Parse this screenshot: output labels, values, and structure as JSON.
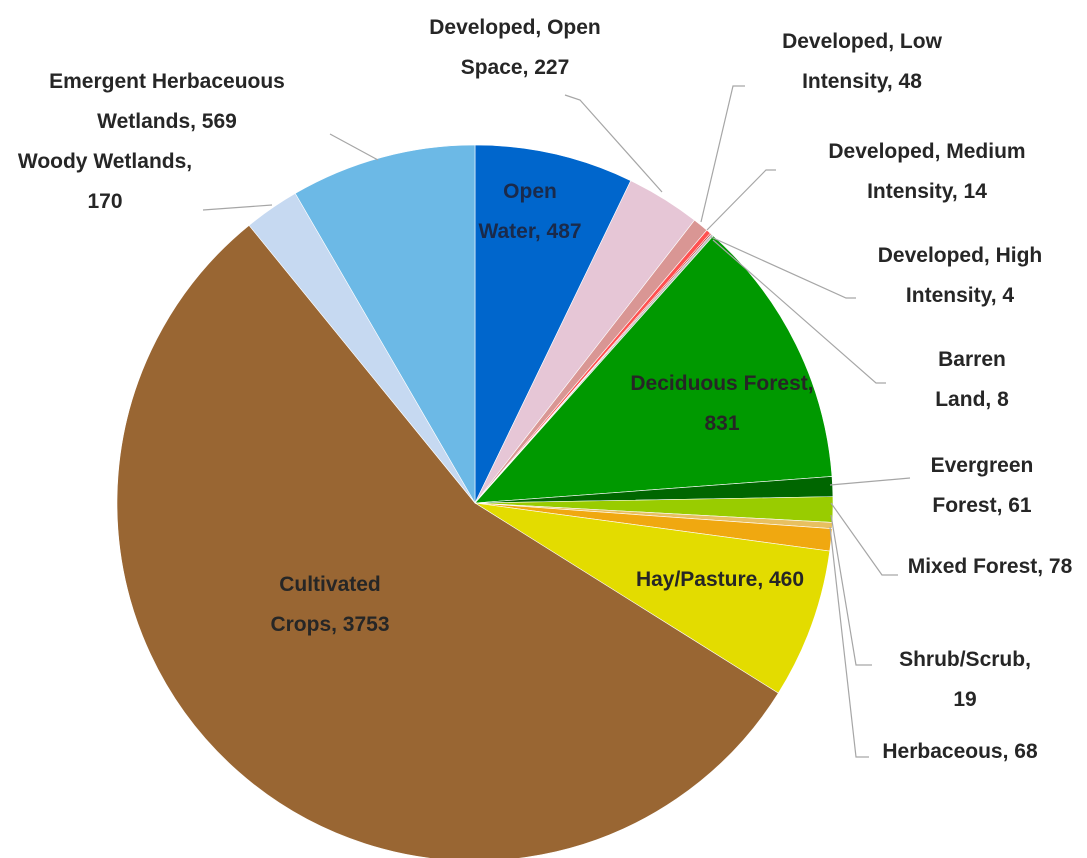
{
  "chart_data": {
    "type": "pie",
    "values": [
      487,
      227,
      48,
      14,
      4,
      8,
      831,
      61,
      78,
      19,
      68,
      460,
      3753,
      170,
      569
    ],
    "value_labels": [
      "Open Water, 487",
      "Developed, Open Space, 227",
      "Developed, Low Intensity, 48",
      "Developed, Medium Intensity, 14",
      "Developed, High Intensity, 4",
      "Barren Land, 8",
      "Deciduous Forest, 831",
      "Evergreen Forest, 61",
      "Mixed Forest, 78",
      "Shrub/Scrub, 19",
      "Herbaceous, 68",
      "Hay/Pasture, 460",
      "Cultivated Crops, 3753",
      "Woody Wetlands, 170",
      "Emergent Herbaceuous Wetlands, 569"
    ],
    "colors": [
      "#0066cc",
      "#e6c6d6",
      "#d99694",
      "#ff5050",
      "#c00000",
      "#bfbfbf",
      "#009900",
      "#006600",
      "#99cc00",
      "#e8c060",
      "#f0a810",
      "#e3dc00",
      "#996633",
      "#c6d9f1",
      "#6cb9e6"
    ]
  }
}
